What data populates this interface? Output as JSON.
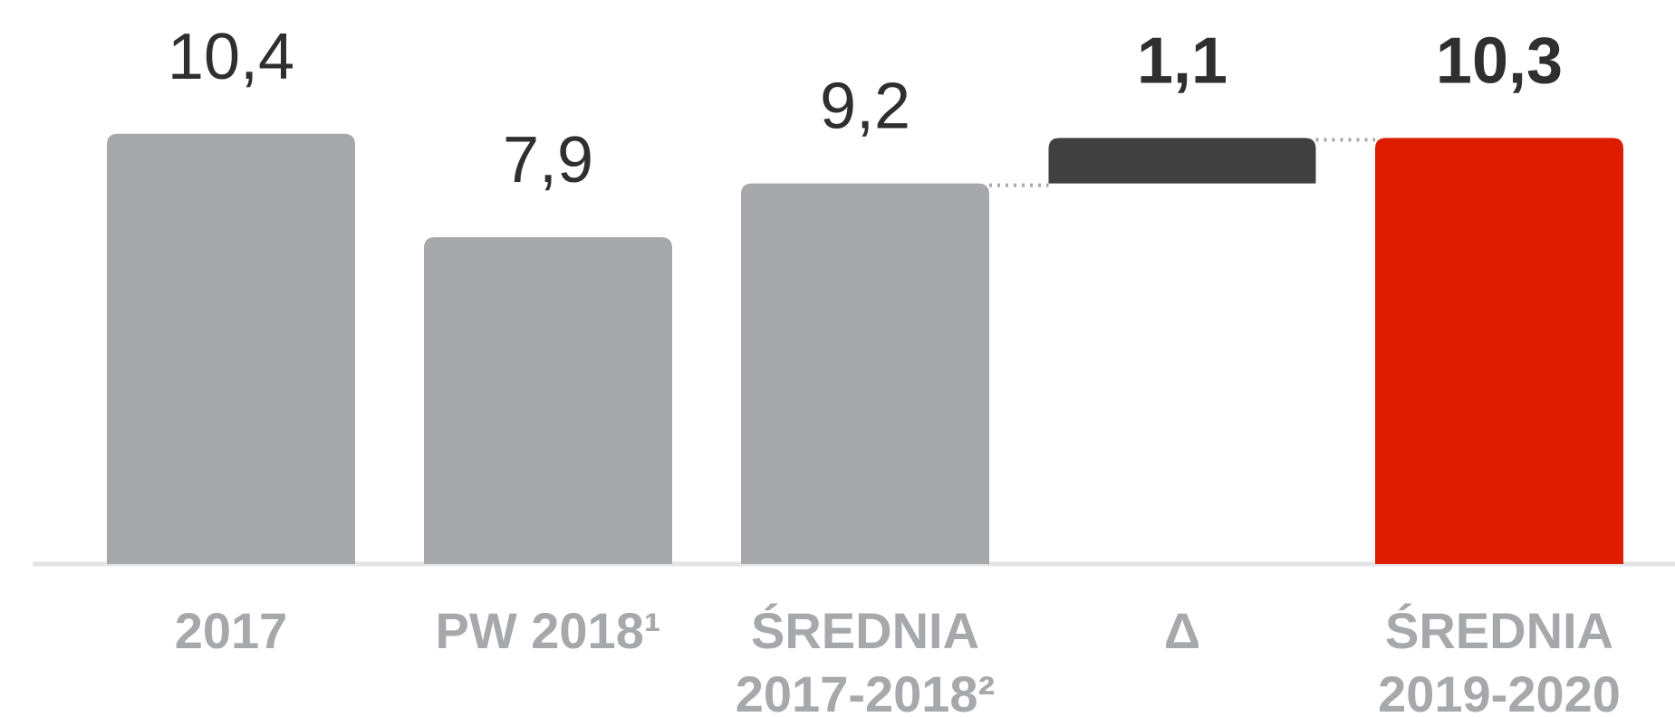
{
  "chart_data": {
    "type": "waterfall",
    "categories": [
      [
        "2017"
      ],
      [
        "PW 2018¹"
      ],
      [
        "ŚREDNIA",
        "2017-2018²"
      ],
      [
        "Δ"
      ],
      [
        "ŚREDNIA",
        "2019-2020"
      ]
    ],
    "values": [
      10.4,
      7.9,
      9.2,
      1.1,
      10.3
    ],
    "value_labels": [
      "10,4",
      "7,9",
      "9,2",
      "1,1",
      "10,3"
    ],
    "measure": [
      "absolute",
      "absolute",
      "absolute",
      "relative",
      "total"
    ],
    "colors": [
      "#a7a8ac",
      "#a7a8ac",
      "#a7a8ac",
      "#404040",
      "#dd1c00"
    ],
    "ylim": [
      0,
      13
    ]
  }
}
